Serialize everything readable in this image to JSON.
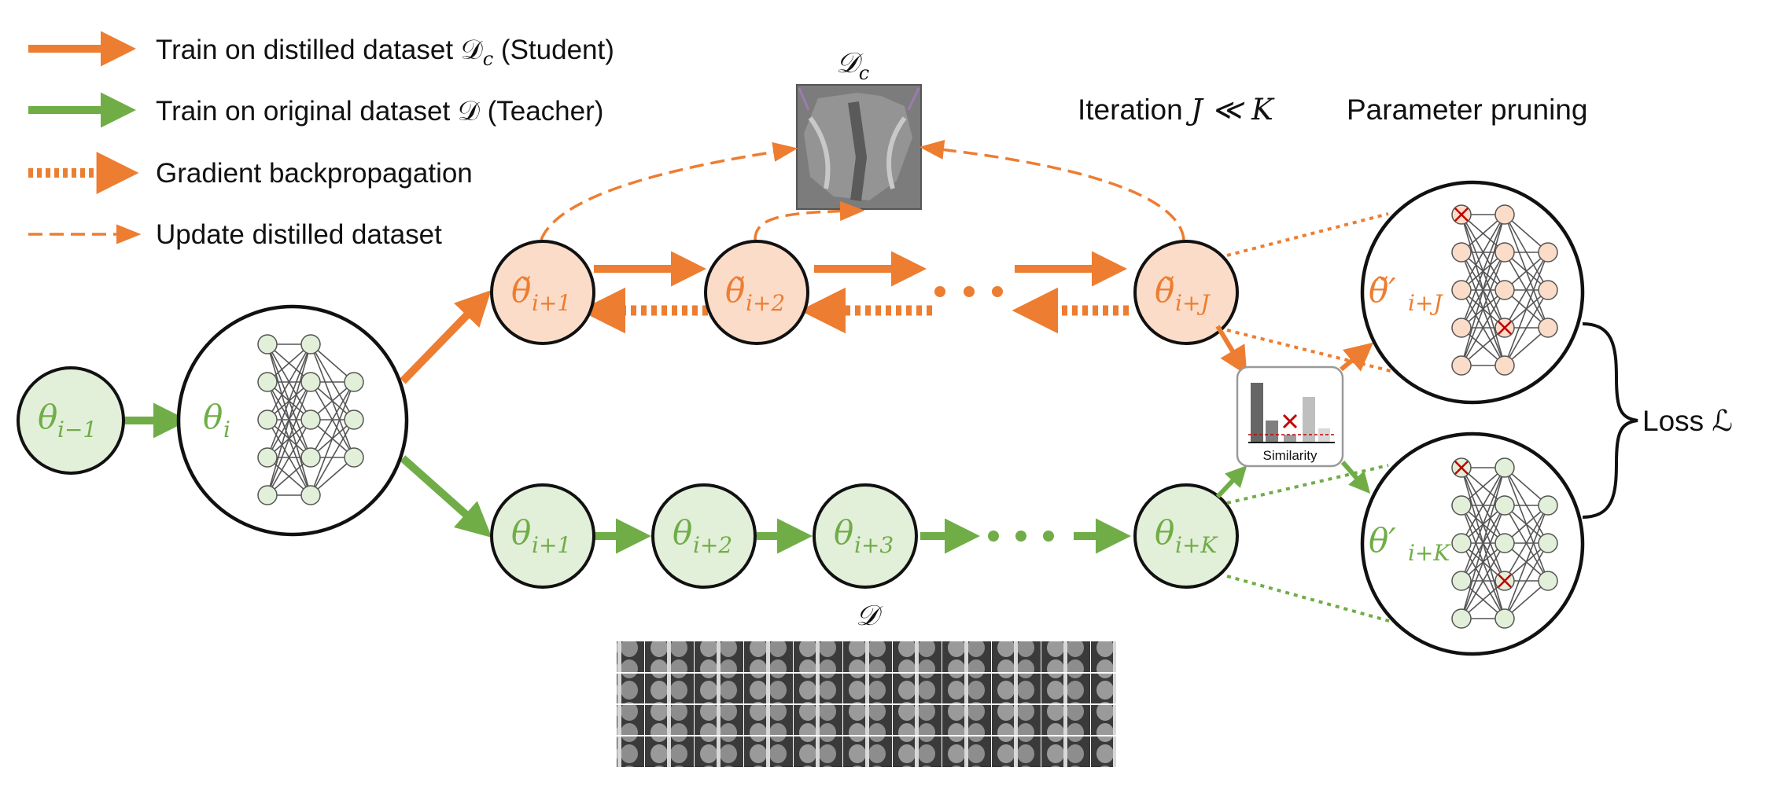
{
  "legend": [
    {
      "text": "Train on distilled dataset 𝒟",
      "sub": "c",
      "tail": " (Student)"
    },
    {
      "text": "Train on original dataset 𝒟 (Teacher)"
    },
    {
      "text": "Gradient backpropagation"
    },
    {
      "text": "Update distilled dataset"
    }
  ],
  "labels": {
    "distilled_set": "𝒟",
    "distilled_set_sub": "c",
    "original_set": "𝒟",
    "iteration": "Iteration",
    "iteration_math": "J ≪ K",
    "pruning": "Parameter pruning",
    "loss": "Loss ℒ",
    "similarity": "Similarity"
  },
  "nodes": {
    "theta_prev": {
      "base": "θ",
      "sub": "i−1"
    },
    "theta_i": {
      "base": "θ",
      "sub": "i"
    },
    "student": [
      {
        "base": "θ̃",
        "sub": "i+1"
      },
      {
        "base": "θ̃",
        "sub": "i+2"
      },
      {
        "base": "θ̃",
        "sub": "i+J"
      }
    ],
    "teacher": [
      {
        "base": "θ",
        "sub": "i+1"
      },
      {
        "base": "θ",
        "sub": "i+2"
      },
      {
        "base": "θ",
        "sub": "i+3"
      },
      {
        "base": "θ",
        "sub": "i+K"
      }
    ],
    "pruned_student": {
      "base": "θ̃′",
      "sub": "i+J"
    },
    "pruned_teacher": {
      "base": "θ′",
      "sub": "i+K"
    }
  },
  "colors": {
    "student": "#ed7d31",
    "teacher": "#70ad47",
    "student_fill": "#fbdcc8",
    "teacher_fill": "#e2efd9",
    "prune_mark": "#c00000"
  }
}
